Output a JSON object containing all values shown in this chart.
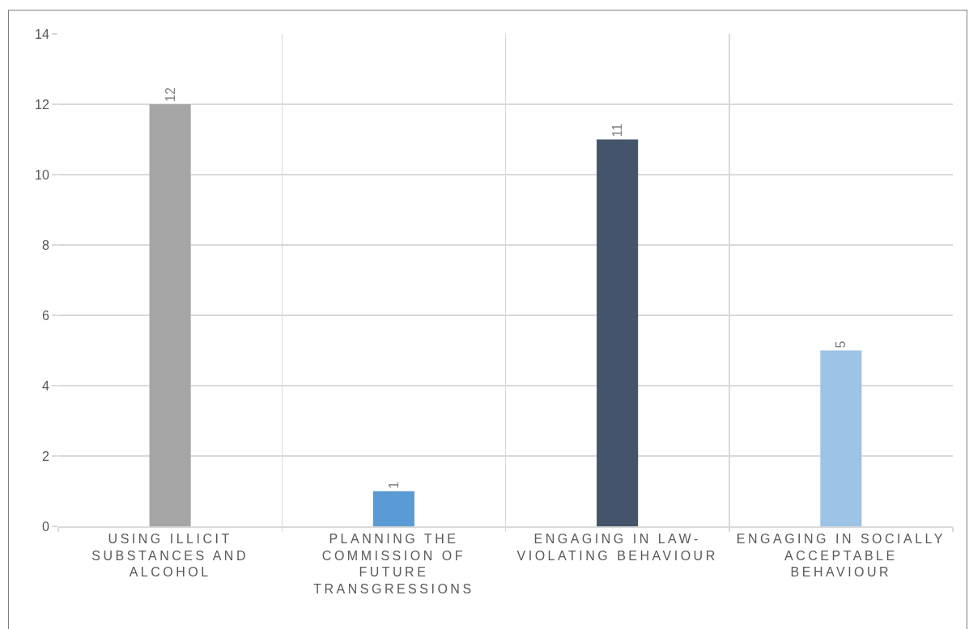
{
  "chart_data": {
    "type": "bar",
    "categories": [
      "USING ILLICIT SUBSTANCES AND ALCOHOL",
      "PLANNING THE COMMISSION OF FUTURE TRANSGRESSIONS",
      "ENGAGING IN LAW-VIOLATING BEHAVIOUR",
      "ENGAGING IN SOCIALLY ACCEPTABLE BEHAVIOUR"
    ],
    "values": [
      12,
      1,
      11,
      5
    ],
    "colors": [
      "#a5a5a5",
      "#5b9bd5",
      "#44546a",
      "#9dc3e6"
    ],
    "ylim": [
      0,
      14
    ],
    "yticks": [
      0,
      2,
      4,
      6,
      8,
      10,
      12,
      14
    ],
    "grid": true,
    "data_labels": true
  }
}
